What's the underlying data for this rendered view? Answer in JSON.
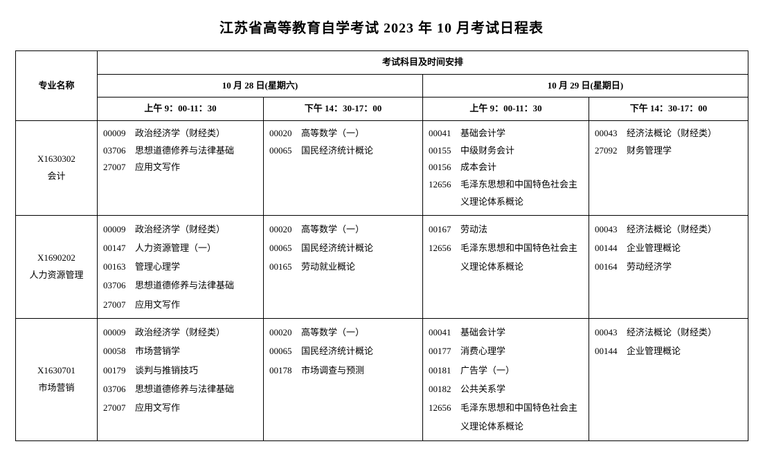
{
  "title": "江苏省高等教育自学考试 2023 年 10 月考试日程表",
  "headers": {
    "major": "专业名称",
    "schedule": "考试科目及时间安排",
    "day1": "10 月 28 日(星期六)",
    "day2": "10 月 29 日(星期日)",
    "am": "上午 9：00-11：30",
    "pm": "下午 14：30-17：00"
  },
  "rows": [
    {
      "code": "X1630302",
      "name": "会计",
      "slots": [
        [
          {
            "c": "00009",
            "t": "政治经济学（财经类）"
          },
          {
            "c": "03706",
            "t": "思想道德修养与法律基础"
          },
          {
            "c": "27007",
            "t": "应用文写作"
          }
        ],
        [
          {
            "c": "00020",
            "t": "高等数学（一）"
          },
          {
            "c": "00065",
            "t": "国民经济统计概论"
          }
        ],
        [
          {
            "c": "00041",
            "t": "基础会计学"
          },
          {
            "c": "00155",
            "t": "中级财务会计"
          },
          {
            "c": "00156",
            "t": "成本会计"
          },
          {
            "c": "12656",
            "t": "毛泽东思想和中国特色社会主义理论体系概论"
          }
        ],
        [
          {
            "c": "00043",
            "t": "经济法概论（财经类）"
          },
          {
            "c": "27092",
            "t": "财务管理学"
          }
        ]
      ]
    },
    {
      "code": "X1690202",
      "name": "人力资源管理",
      "big": true,
      "slots": [
        [
          {
            "c": "00009",
            "t": "政治经济学（财经类）"
          },
          {
            "c": "00147",
            "t": "人力资源管理（一）"
          },
          {
            "c": "00163",
            "t": "管理心理学"
          },
          {
            "c": "03706",
            "t": "思想道德修养与法律基础"
          },
          {
            "c": "27007",
            "t": "应用文写作"
          }
        ],
        [
          {
            "c": "00020",
            "t": "高等数学（一）"
          },
          {
            "c": "00065",
            "t": "国民经济统计概论"
          },
          {
            "c": "00165",
            "t": "劳动就业概论"
          }
        ],
        [
          {
            "c": "00167",
            "t": "劳动法"
          },
          {
            "c": "12656",
            "t": "毛泽东思想和中国特色社会主义理论体系概论"
          }
        ],
        [
          {
            "c": "00043",
            "t": "经济法概论（财经类）"
          },
          {
            "c": "00144",
            "t": "企业管理概论"
          },
          {
            "c": "00164",
            "t": "劳动经济学"
          }
        ]
      ]
    },
    {
      "code": "X1630701",
      "name": "市场营销",
      "big": true,
      "slots": [
        [
          {
            "c": "00009",
            "t": "政治经济学（财经类）"
          },
          {
            "c": "00058",
            "t": "市场营销学"
          },
          {
            "c": "00179",
            "t": "谈判与推销技巧"
          },
          {
            "c": "03706",
            "t": "思想道德修养与法律基础"
          },
          {
            "c": "27007",
            "t": "应用文写作"
          }
        ],
        [
          {
            "c": "00020",
            "t": "高等数学（一）"
          },
          {
            "c": "00065",
            "t": "国民经济统计概论"
          },
          {
            "c": "00178",
            "t": "市场调查与预测"
          }
        ],
        [
          {
            "c": "00041",
            "t": "基础会计学"
          },
          {
            "c": "00177",
            "t": "消费心理学"
          },
          {
            "c": "00181",
            "t": "广告学（一）"
          },
          {
            "c": "00182",
            "t": "公共关系学"
          },
          {
            "c": "12656",
            "t": "毛泽东思想和中国特色社会主义理论体系概论"
          }
        ],
        [
          {
            "c": "00043",
            "t": "经济法概论（财经类）"
          },
          {
            "c": "00144",
            "t": "企业管理概论"
          }
        ]
      ]
    }
  ]
}
